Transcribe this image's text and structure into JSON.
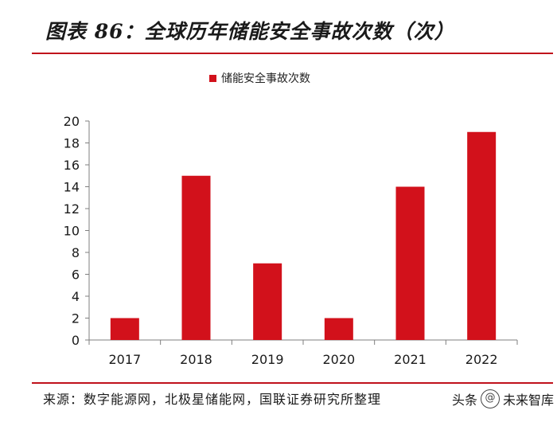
{
  "header": {
    "title": "图表 86：全球历年储能安全事故次数（次）"
  },
  "footer": {
    "source": "来源：数字能源网，北极星储能网，国联证券研究所整理",
    "watermark_prefix": "头条",
    "watermark_icon": "@",
    "watermark_name": "未来智库"
  },
  "chart_data": {
    "type": "bar",
    "title": "全球历年储能安全事故次数（次）",
    "series": [
      {
        "name": "储能安全事故次数",
        "color": "#d2111b",
        "values": [
          2,
          15,
          7,
          2,
          14,
          19
        ]
      }
    ],
    "categories": [
      "2017",
      "2018",
      "2019",
      "2020",
      "2021",
      "2022"
    ],
    "xlabel": "",
    "ylabel": "",
    "ylim": [
      0,
      20
    ],
    "yticks": [
      0,
      2,
      4,
      6,
      8,
      10,
      12,
      14,
      16,
      18,
      20
    ],
    "grid": false,
    "legend": "top-center"
  }
}
